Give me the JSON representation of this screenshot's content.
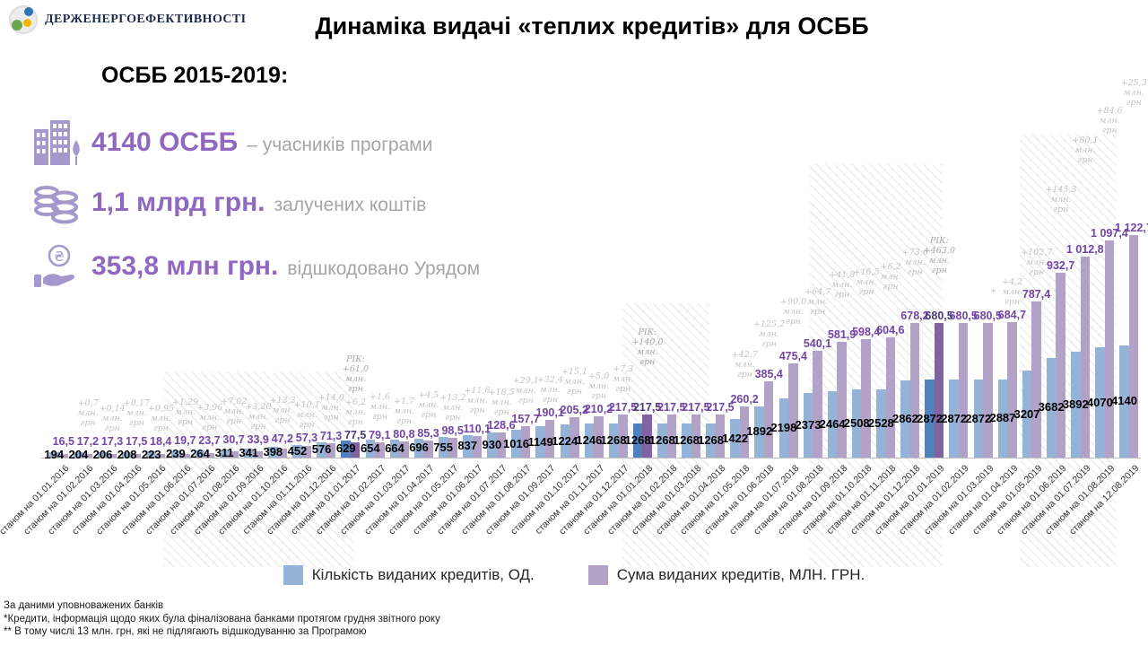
{
  "header": {
    "logo_text": "ДЕРЖЕНЕРГОЕФЕКТИВНОСТІ",
    "title": "Динаміка видачі «теплих кредитів» для ОСББ"
  },
  "summary": {
    "heading": "ОСББ 2015-2019:",
    "stats": [
      {
        "icon": "building-icon",
        "value": "4140 ОСББ",
        "label": "– учасників програми"
      },
      {
        "icon": "coins-icon",
        "value": "1,1 млрд грн.",
        "label": "залучених коштів"
      },
      {
        "icon": "hand-coin-icon",
        "value": "353,8 млн грн.",
        "label": "відшкодовано Урядом"
      }
    ]
  },
  "chart_data": {
    "type": "bar",
    "axis_label_prefix": "станом на",
    "legend_position": "bottom",
    "grid": false,
    "series": [
      {
        "name": "Кількість виданих кредитів, ОД.",
        "color": "#95B3D7",
        "dark_color": "#4F81BD"
      },
      {
        "name": "Сума виданих кредитів, МЛН. ГРН.",
        "color": "#B3A2C7",
        "dark_color": "#8064A2"
      }
    ],
    "sum_label_color": "#7345a5",
    "points": [
      {
        "date": "01.01.2016",
        "count": 194,
        "sum": 16.5,
        "sum_label": "16,5"
      },
      {
        "date": "01.02.2016",
        "count": 204,
        "sum": 17.2,
        "sum_label": "17,2",
        "delta": [
          "+0,7",
          "млн.",
          "грн"
        ]
      },
      {
        "date": "01.03.2016",
        "count": 206,
        "sum": 17.3,
        "sum_label": "17,3",
        "delta": [
          "+0,14",
          "млн.",
          "грн"
        ]
      },
      {
        "date": "01.04.2016",
        "count": 208,
        "sum": 17.5,
        "sum_label": "17,5",
        "delta": [
          "+0,17",
          "млн.",
          "грн"
        ]
      },
      {
        "date": "01.05.2016",
        "count": 223,
        "sum": 18.4,
        "sum_label": "18,4",
        "delta": [
          "+0,95",
          "млн.",
          "грн"
        ]
      },
      {
        "date": "01.06.2016",
        "count": 239,
        "sum": 19.7,
        "sum_label": "19,7",
        "delta": [
          "+1,29",
          "млн.",
          "грн"
        ]
      },
      {
        "date": "01.07.2016",
        "count": 264,
        "sum": 23.7,
        "sum_label": "23,7",
        "delta": [
          "+3,96",
          "млн.",
          "грн"
        ]
      },
      {
        "date": "01.08.2016",
        "count": 311,
        "sum": 30.7,
        "sum_label": "30,7",
        "delta": [
          "+7,02",
          "млн.",
          "грн"
        ]
      },
      {
        "date": "01.09.2016",
        "count": 341,
        "sum": 33.9,
        "sum_label": "33,9",
        "delta": [
          "+3,20",
          "млн.",
          "грн"
        ]
      },
      {
        "date": "01.10.2016",
        "count": 398,
        "sum": 47.2,
        "sum_label": "47,2",
        "delta": [
          "+13,3",
          "млн.",
          "грн"
        ]
      },
      {
        "date": "01.11.2016",
        "count": 452,
        "sum": 57.3,
        "sum_label": "57,3",
        "delta": [
          "+10,1",
          "млн.",
          "грн"
        ]
      },
      {
        "date": "01.12.2016",
        "count": 576,
        "sum": 71.3,
        "sum_label": "71,3",
        "delta": [
          "+14,0",
          "млн.",
          "грн"
        ]
      },
      {
        "date": "01.01.2017",
        "count": 629,
        "sum": 77.5,
        "sum_label": "77,5",
        "dark": true,
        "delta": [
          "+6,2",
          "млн.",
          "грн"
        ],
        "rik": [
          "РІК:",
          "+61,0",
          "млн.",
          "грн"
        ]
      },
      {
        "date": "01.02.2017",
        "count": 654,
        "sum": 79.1,
        "sum_label": "79,1",
        "delta": [
          "+1,6",
          "млн.",
          "грн"
        ]
      },
      {
        "date": "01.03.2017",
        "count": 664,
        "sum": 80.8,
        "sum_label": "80,8",
        "delta": [
          "+1,7",
          "млн.",
          "грн"
        ]
      },
      {
        "date": "01.04.2017",
        "count": 696,
        "sum": 85.3,
        "sum_label": "85,3",
        "delta": [
          "+4,5",
          "млн.",
          "грн"
        ]
      },
      {
        "date": "01.05.2017",
        "count": 755,
        "sum": 98.5,
        "sum_label": "98,5",
        "delta": [
          "+13,2",
          "млн.",
          "грн"
        ]
      },
      {
        "date": "01.06.2017",
        "count": 837,
        "sum": 110.1,
        "sum_label": "110,1",
        "delta": [
          "+11,6",
          "млн.",
          "грн"
        ]
      },
      {
        "date": "01.07.2017",
        "count": 930,
        "sum": 128.6,
        "sum_label": "128,6",
        "delta": [
          "+18,5",
          "млн.",
          "грн"
        ]
      },
      {
        "date": "01.08.2017",
        "count": 1016,
        "sum": 157.7,
        "sum_label": "157,7",
        "delta": [
          "+29,1",
          "млн.",
          "грн"
        ]
      },
      {
        "date": "01.09.2017",
        "count": 1149,
        "sum": 190.1,
        "sum_label": "190,1",
        "delta": [
          "+32,4",
          "млн.",
          "грн"
        ]
      },
      {
        "date": "01.10.2017",
        "count": 1224,
        "sum": 205.2,
        "sum_label": "205,2",
        "delta": [
          "+15,1",
          "млн.",
          "грн"
        ]
      },
      {
        "date": "01.11.2017",
        "count": 1246,
        "sum": 210.2,
        "sum_label": "210,2",
        "delta": [
          "+5,0",
          "млн.",
          "грн"
        ]
      },
      {
        "date": "01.12.2017",
        "count": 1268,
        "sum": 217.5,
        "sum_label": "217,5",
        "delta": [
          "+7,3",
          "млн.",
          "грн"
        ]
      },
      {
        "date": "01.01.2018",
        "count": 1268,
        "sum": 217.5,
        "sum_label": "217,5",
        "dark": true,
        "rik": [
          "РІК:",
          "+140,0",
          "млн.",
          "грн"
        ]
      },
      {
        "date": "01.02.2018",
        "count": 1268,
        "sum": 217.5,
        "sum_label": "217,5"
      },
      {
        "date": "01.03.2018",
        "count": 1268,
        "sum": 217.5,
        "sum_label": "217,5"
      },
      {
        "date": "01.04.2018",
        "count": 1268,
        "sum": 217.5,
        "sum_label": "217,5"
      },
      {
        "date": "01.05.2018",
        "count": 1422,
        "sum": 260.2,
        "sum_label": "260,2",
        "delta": [
          "+42,7",
          "млн.",
          "грн"
        ]
      },
      {
        "date": "01.06.2018",
        "count": 1892,
        "sum": 385.4,
        "sum_label": "385,4",
        "delta": [
          "+125,2",
          "млн.",
          "грн"
        ]
      },
      {
        "date": "01.07.2018",
        "count": 2198,
        "sum": 475.4,
        "sum_label": "475,4",
        "delta": [
          "+90,0",
          "млн.",
          "грн"
        ]
      },
      {
        "date": "01.08.2018",
        "count": 2373,
        "sum": 540.1,
        "sum_label": "540,1",
        "delta": [
          "+64,7",
          "млн.",
          "грн"
        ]
      },
      {
        "date": "01.09.2018",
        "count": 2464,
        "sum": 581.9,
        "sum_label": "581,9",
        "delta": [
          "+41,8",
          "млн.",
          "грн"
        ]
      },
      {
        "date": "01.10.2018",
        "count": 2508,
        "sum": 598.4,
        "sum_label": "598,4",
        "delta": [
          "+16,5",
          "млн.",
          "грн"
        ]
      },
      {
        "date": "01.11.2018",
        "count": 2528,
        "sum": 604.6,
        "sum_label": "604,6",
        "delta": [
          "+6,2",
          "млн.",
          "грн"
        ]
      },
      {
        "date": "01.12.2018",
        "count": 2862,
        "sum": 678.2,
        "sum_label": "678,2",
        "delta": [
          "+73,6",
          "млн.",
          "грн"
        ]
      },
      {
        "date": "01.01.2019",
        "count": 2872,
        "sum": 680.5,
        "sum_label": "680,5",
        "dark": true,
        "rik": [
          "РІК:",
          "+463,0",
          "млн.",
          "грн"
        ]
      },
      {
        "date": "01.02.2019",
        "count": 2872,
        "sum": 680.5,
        "sum_label": "680,5"
      },
      {
        "date": "01.03.2019",
        "count": 2872,
        "sum": 680.5,
        "sum_label": "680,5"
      },
      {
        "date": "01.04.2019",
        "count": 2887,
        "sum": 684.7,
        "sum_label": "684,7",
        "delta": [
          "+4,2",
          "млн.",
          "грн"
        ],
        "note": "*",
        "note_side": "left"
      },
      {
        "date": "01.05.2019",
        "count": 3207,
        "sum": 787.4,
        "sum_label": "787,4",
        "delta": [
          "+102,7",
          "млн.",
          "грн"
        ]
      },
      {
        "date": "01.06.2019",
        "count": 3682,
        "sum": 932.7,
        "sum_label": "932,7",
        "delta": [
          "+145,3",
          "млн.",
          "грн"
        ]
      },
      {
        "date": "01.07.2019",
        "count": 3892,
        "sum": 1012.8,
        "sum_label": "1 012,8",
        "delta": [
          "+80,1",
          "млн.",
          "грн"
        ]
      },
      {
        "date": "01.08.2019",
        "count": 4070,
        "sum": 1097.4,
        "sum_label": "1 097,4",
        "delta": [
          "+84,6",
          "млн.",
          "грн"
        ]
      },
      {
        "date": "12.08.2019",
        "count": 4140,
        "sum": 1122.7,
        "sum_label": "1 122,7",
        "delta": [
          "+25,3",
          "млн.",
          "грн"
        ],
        "note": "**",
        "note_side": "right"
      }
    ]
  },
  "footnotes": [
    "За даними уповноважених банків",
    "*Кредити, інформація щодо яких була фіналізована банками протягом грудня звітного року",
    "** В тому числі 13 млн. грн, які не підлягають відшкодуванню за Програмою"
  ]
}
